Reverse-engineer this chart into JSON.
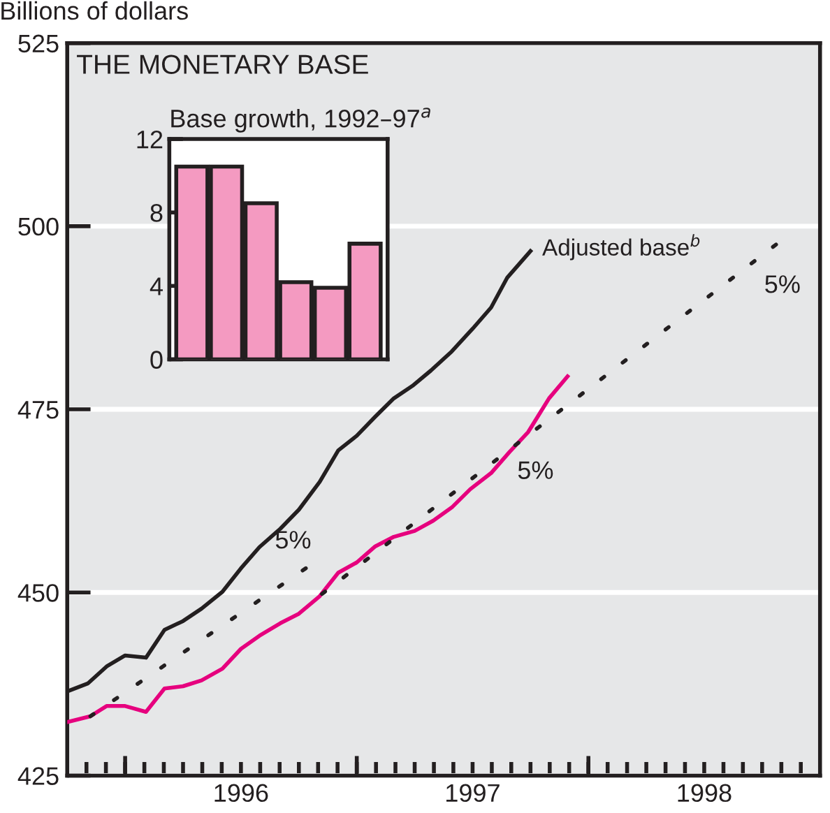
{
  "chart_data": [
    {
      "type": "line",
      "title": "THE MONETARY BASE",
      "ylabel": "Billions of dollars",
      "xlim": [
        1995.75,
        1999.0
      ],
      "ylim": [
        425,
        525
      ],
      "yticks": [
        425,
        450,
        475,
        500,
        525
      ],
      "xticks": [
        {
          "value": 1995.833,
          "label": null
        },
        {
          "value": 1995.917,
          "label": null
        },
        {
          "value": 1996,
          "label": null
        },
        {
          "value": 1996.083,
          "label": null
        },
        {
          "value": 1996.167,
          "label": null
        },
        {
          "value": 1996.25,
          "label": null
        },
        {
          "value": 1996.333,
          "label": null
        },
        {
          "value": 1996.417,
          "label": null
        },
        {
          "value": 1996.5,
          "label": "1996"
        },
        {
          "value": 1996.583,
          "label": null
        },
        {
          "value": 1996.667,
          "label": null
        },
        {
          "value": 1996.75,
          "label": null
        },
        {
          "value": 1996.833,
          "label": null
        },
        {
          "value": 1996.917,
          "label": null
        },
        {
          "value": 1997,
          "label": null
        },
        {
          "value": 1997.083,
          "label": null
        },
        {
          "value": 1997.167,
          "label": null
        },
        {
          "value": 1997.25,
          "label": null
        },
        {
          "value": 1997.333,
          "label": null
        },
        {
          "value": 1997.417,
          "label": null
        },
        {
          "value": 1997.5,
          "label": "1997"
        },
        {
          "value": 1997.583,
          "label": null
        },
        {
          "value": 1997.667,
          "label": null
        },
        {
          "value": 1997.75,
          "label": null
        },
        {
          "value": 1997.833,
          "label": null
        },
        {
          "value": 1997.917,
          "label": null
        },
        {
          "value": 1998,
          "label": null
        },
        {
          "value": 1998.083,
          "label": null
        },
        {
          "value": 1998.167,
          "label": null
        },
        {
          "value": 1998.25,
          "label": null
        },
        {
          "value": 1998.333,
          "label": null
        },
        {
          "value": 1998.417,
          "label": null
        },
        {
          "value": 1998.5,
          "label": "1998"
        },
        {
          "value": 1998.583,
          "label": null
        },
        {
          "value": 1998.667,
          "label": null
        },
        {
          "value": 1998.75,
          "label": null
        },
        {
          "value": 1998.833,
          "label": null
        },
        {
          "value": 1998.917,
          "label": null
        }
      ],
      "grid": "y",
      "legend": false,
      "series": [
        {
          "name": "Adjusted base$^{b}$",
          "color": "#231f20",
          "x": [
            1995.75,
            1995.84,
            1995.92,
            1996.0,
            1996.09,
            1996.17,
            1996.25,
            1996.33,
            1996.42,
            1996.5,
            1996.58,
            1996.67,
            1996.75,
            1996.84,
            1996.92,
            1997.0,
            1997.08,
            1997.16,
            1997.24,
            1997.32,
            1997.41,
            1997.5,
            1997.58,
            1997.65,
            1997.75
          ],
          "values": [
            436.5,
            437.6,
            439.9,
            441.4,
            441.1,
            444.9,
            446.1,
            447.8,
            450.1,
            453.3,
            456.2,
            458.7,
            461.3,
            465.1,
            469.4,
            471.4,
            474.0,
            476.5,
            478.2,
            480.3,
            482.9,
            486.0,
            488.9,
            493.0,
            496.6
          ]
        },
        {
          "color": "#e6007e",
          "x": [
            1995.75,
            1995.85,
            1995.92,
            1996.0,
            1996.09,
            1996.17,
            1996.25,
            1996.33,
            1996.42,
            1996.5,
            1996.58,
            1996.67,
            1996.75,
            1996.84,
            1996.92,
            1997.0,
            1997.08,
            1997.16,
            1997.25,
            1997.33,
            1997.41,
            1997.49,
            1997.58,
            1997.66,
            1997.74,
            1997.83,
            1997.91
          ],
          "values": [
            432.3,
            433.1,
            434.5,
            434.5,
            433.7,
            436.9,
            437.2,
            438.0,
            439.6,
            442.3,
            444.1,
            445.8,
            447.1,
            449.5,
            452.7,
            454.1,
            456.3,
            457.6,
            458.4,
            459.8,
            461.6,
            464.1,
            466.3,
            469.2,
            471.9,
            476.5,
            479.5
          ]
        },
        {
          "color": "#231f20",
          "line_style": "dotted",
          "x": [
            1995.85,
            1996.78
          ],
          "values": [
            433.1,
            453.3
          ]
        },
        {
          "color": "#231f20",
          "line_style": "dotted",
          "x": [
            1996.85,
            1998.81
          ],
          "values": [
            449.8,
            497.5
          ]
        }
      ],
      "annotations": [
        "5%",
        "5%",
        "5%"
      ]
    },
    {
      "type": "bar",
      "title": "Base growth, 1992–97$^{a}$",
      "categories": [
        null,
        null,
        null,
        null,
        null,
        null
      ],
      "values": [
        10.5,
        10.5,
        8.5,
        4.2,
        3.9,
        6.3
      ],
      "color": "#f49ac1",
      "ylim": [
        0,
        12
      ],
      "yticks": [
        0,
        4,
        8,
        12
      ],
      "tick_labels": "y",
      "grid": false,
      "legend": false
    }
  ]
}
